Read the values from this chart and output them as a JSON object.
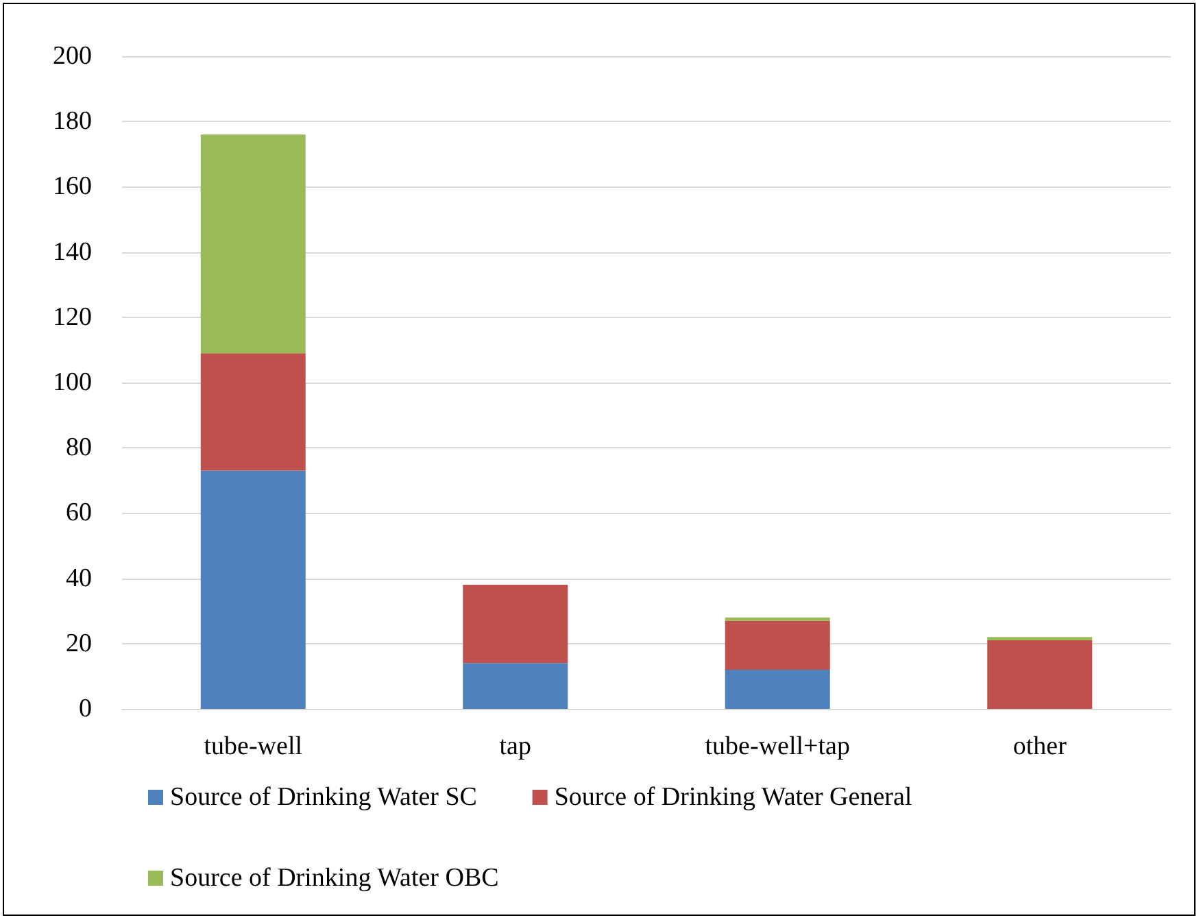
{
  "chart_data": {
    "type": "bar",
    "stacked": true,
    "categories": [
      "tube-well",
      "tap",
      "tube-well+tap",
      "other"
    ],
    "series": [
      {
        "name": "Source of Drinking Water SC",
        "color": "#4f81bd",
        "values": [
          73,
          14,
          12,
          0
        ]
      },
      {
        "name": "Source of Drinking Water General",
        "color": "#c0504d",
        "values": [
          36,
          24,
          15,
          21
        ]
      },
      {
        "name": "Source of Drinking Water OBC",
        "color": "#9bbb59",
        "values": [
          67,
          0,
          1,
          1
        ]
      }
    ],
    "ylim": [
      0,
      200
    ],
    "yticks": [
      0,
      20,
      40,
      60,
      80,
      100,
      120,
      140,
      160,
      180,
      200
    ],
    "grid": "y",
    "legend": "bottom"
  }
}
